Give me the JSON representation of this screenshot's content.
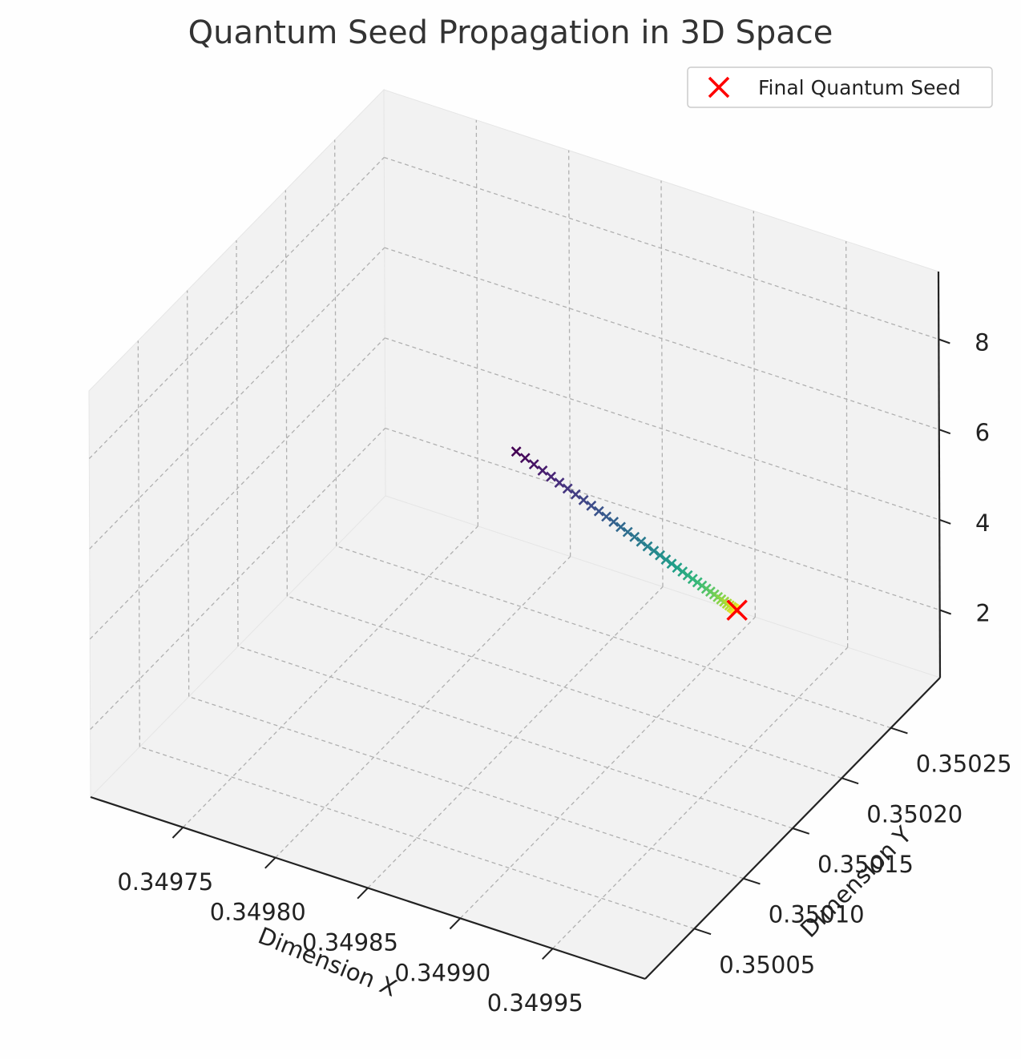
{
  "chart_data": {
    "type": "scatter",
    "projection": "3d",
    "title": "Quantum Seed Propagation in 3D Space",
    "xlabel": "Dimension X",
    "ylabel": "Dimension Y",
    "zlabel": "",
    "x_ticks": [
      "0.34975",
      "0.34980",
      "0.34985",
      "0.34990",
      "0.34995"
    ],
    "y_ticks": [
      "0.35005",
      "0.35010",
      "0.35015",
      "0.35020",
      "0.35025"
    ],
    "z_ticks": [
      "2",
      "4",
      "6",
      "8"
    ],
    "xlim": [
      0.3497,
      0.35
    ],
    "ylim": [
      0.35,
      0.3503
    ],
    "zlim": [
      0.5,
      9.5
    ],
    "grid": true,
    "grid_style": "dashed",
    "colormap": "viridis",
    "series": [
      {
        "marker": "x",
        "start": {
          "x": 0.349803,
          "y": 0.35024,
          "z": 4.2
        },
        "end": {
          "x": 0.349956,
          "y": 0.350175,
          "z": 4.2
        },
        "count": 40
      },
      {
        "name": "Final Quantum Seed",
        "marker": "x",
        "color": "#ff0000",
        "points": [
          {
            "x": 0.349957,
            "y": 0.350175,
            "z": 4.2
          }
        ]
      }
    ],
    "legend": {
      "position": "top-right",
      "entries": [
        "Final Quantum Seed"
      ]
    }
  },
  "colors": {
    "pane": "#f2f2f2",
    "pane_edge": "#e6e6e6",
    "grid": "#b0b0b0",
    "axis": "#222222",
    "final_marker": "#ff0000",
    "background": "#fefefe"
  }
}
